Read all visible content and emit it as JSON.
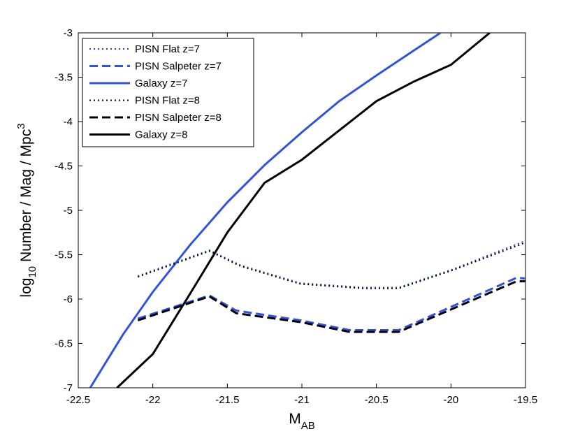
{
  "chart_data": {
    "type": "line",
    "x_label": {
      "main": "M",
      "sub": "AB"
    },
    "y_label": {
      "base": "log",
      "sub": "10",
      "main": " Number / Mag / Mpc",
      "sup": "3"
    },
    "xlim": [
      -22.5,
      -19.5
    ],
    "xticks": [
      -22.5,
      -22,
      -21.5,
      -21,
      -20.5,
      -20,
      -19.5
    ],
    "ylim": [
      -7,
      -3
    ],
    "yticks": [
      -7,
      -6.5,
      -6,
      -5.5,
      -5,
      -4.5,
      -4,
      -3.5,
      -3
    ],
    "legend": "upper left",
    "series": [
      {
        "name": "PISN Flat z=7",
        "color": "#2a3fb8",
        "style": "dotted",
        "x": [
          -22.1,
          -21.62,
          -21.41,
          -21.01,
          -20.59,
          -20.35,
          -19.98,
          -19.51
        ],
        "values": [
          -5.74,
          -5.45,
          -5.62,
          -5.82,
          -5.87,
          -5.87,
          -5.66,
          -5.35
        ]
      },
      {
        "name": "PISN Salpeter z=7",
        "color": "#2f52e0",
        "style": "dashed",
        "x": [
          -22.1,
          -21.62,
          -21.44,
          -21.01,
          -20.68,
          -20.35,
          -19.56,
          -19.5
        ],
        "values": [
          -6.22,
          -5.96,
          -6.13,
          -6.24,
          -6.35,
          -6.35,
          -5.76,
          -5.77
        ]
      },
      {
        "name": "Galaxy z=7",
        "color": "#2f52e0",
        "style": "solid",
        "x": [
          -22.42,
          -22.2,
          -22,
          -21.75,
          -21.5,
          -21.25,
          -21,
          -20.75,
          -20.5,
          -20.25,
          -20.07
        ],
        "values": [
          -7,
          -6.4,
          -5.92,
          -5.39,
          -4.91,
          -4.49,
          -4.12,
          -3.77,
          -3.48,
          -3.2,
          -3
        ]
      },
      {
        "name": "PISN Flat z=8",
        "color": "#000000",
        "style": "dotted",
        "x": [
          -22.1,
          -21.62,
          -21.41,
          -21.01,
          -20.59,
          -20.35,
          -19.98,
          -19.51
        ],
        "values": [
          -5.75,
          -5.46,
          -5.63,
          -5.83,
          -5.88,
          -5.88,
          -5.67,
          -5.37
        ]
      },
      {
        "name": "PISN Salpeter z=8",
        "color": "#000000",
        "style": "dashed",
        "x": [
          -22.1,
          -21.62,
          -21.44,
          -21.01,
          -20.68,
          -20.35,
          -19.56,
          -19.5
        ],
        "values": [
          -6.24,
          -5.97,
          -6.16,
          -6.26,
          -6.37,
          -6.37,
          -5.8,
          -5.8
        ]
      },
      {
        "name": "Galaxy z=8",
        "color": "#000000",
        "style": "solid",
        "x": [
          -22.24,
          -22,
          -21.75,
          -21.5,
          -21.25,
          -21,
          -20.75,
          -20.5,
          -20.25,
          -20,
          -19.74
        ],
        "values": [
          -7,
          -6.62,
          -5.94,
          -5.25,
          -4.69,
          -4.43,
          -4.1,
          -3.77,
          -3.55,
          -3.36,
          -3
        ]
      }
    ]
  }
}
